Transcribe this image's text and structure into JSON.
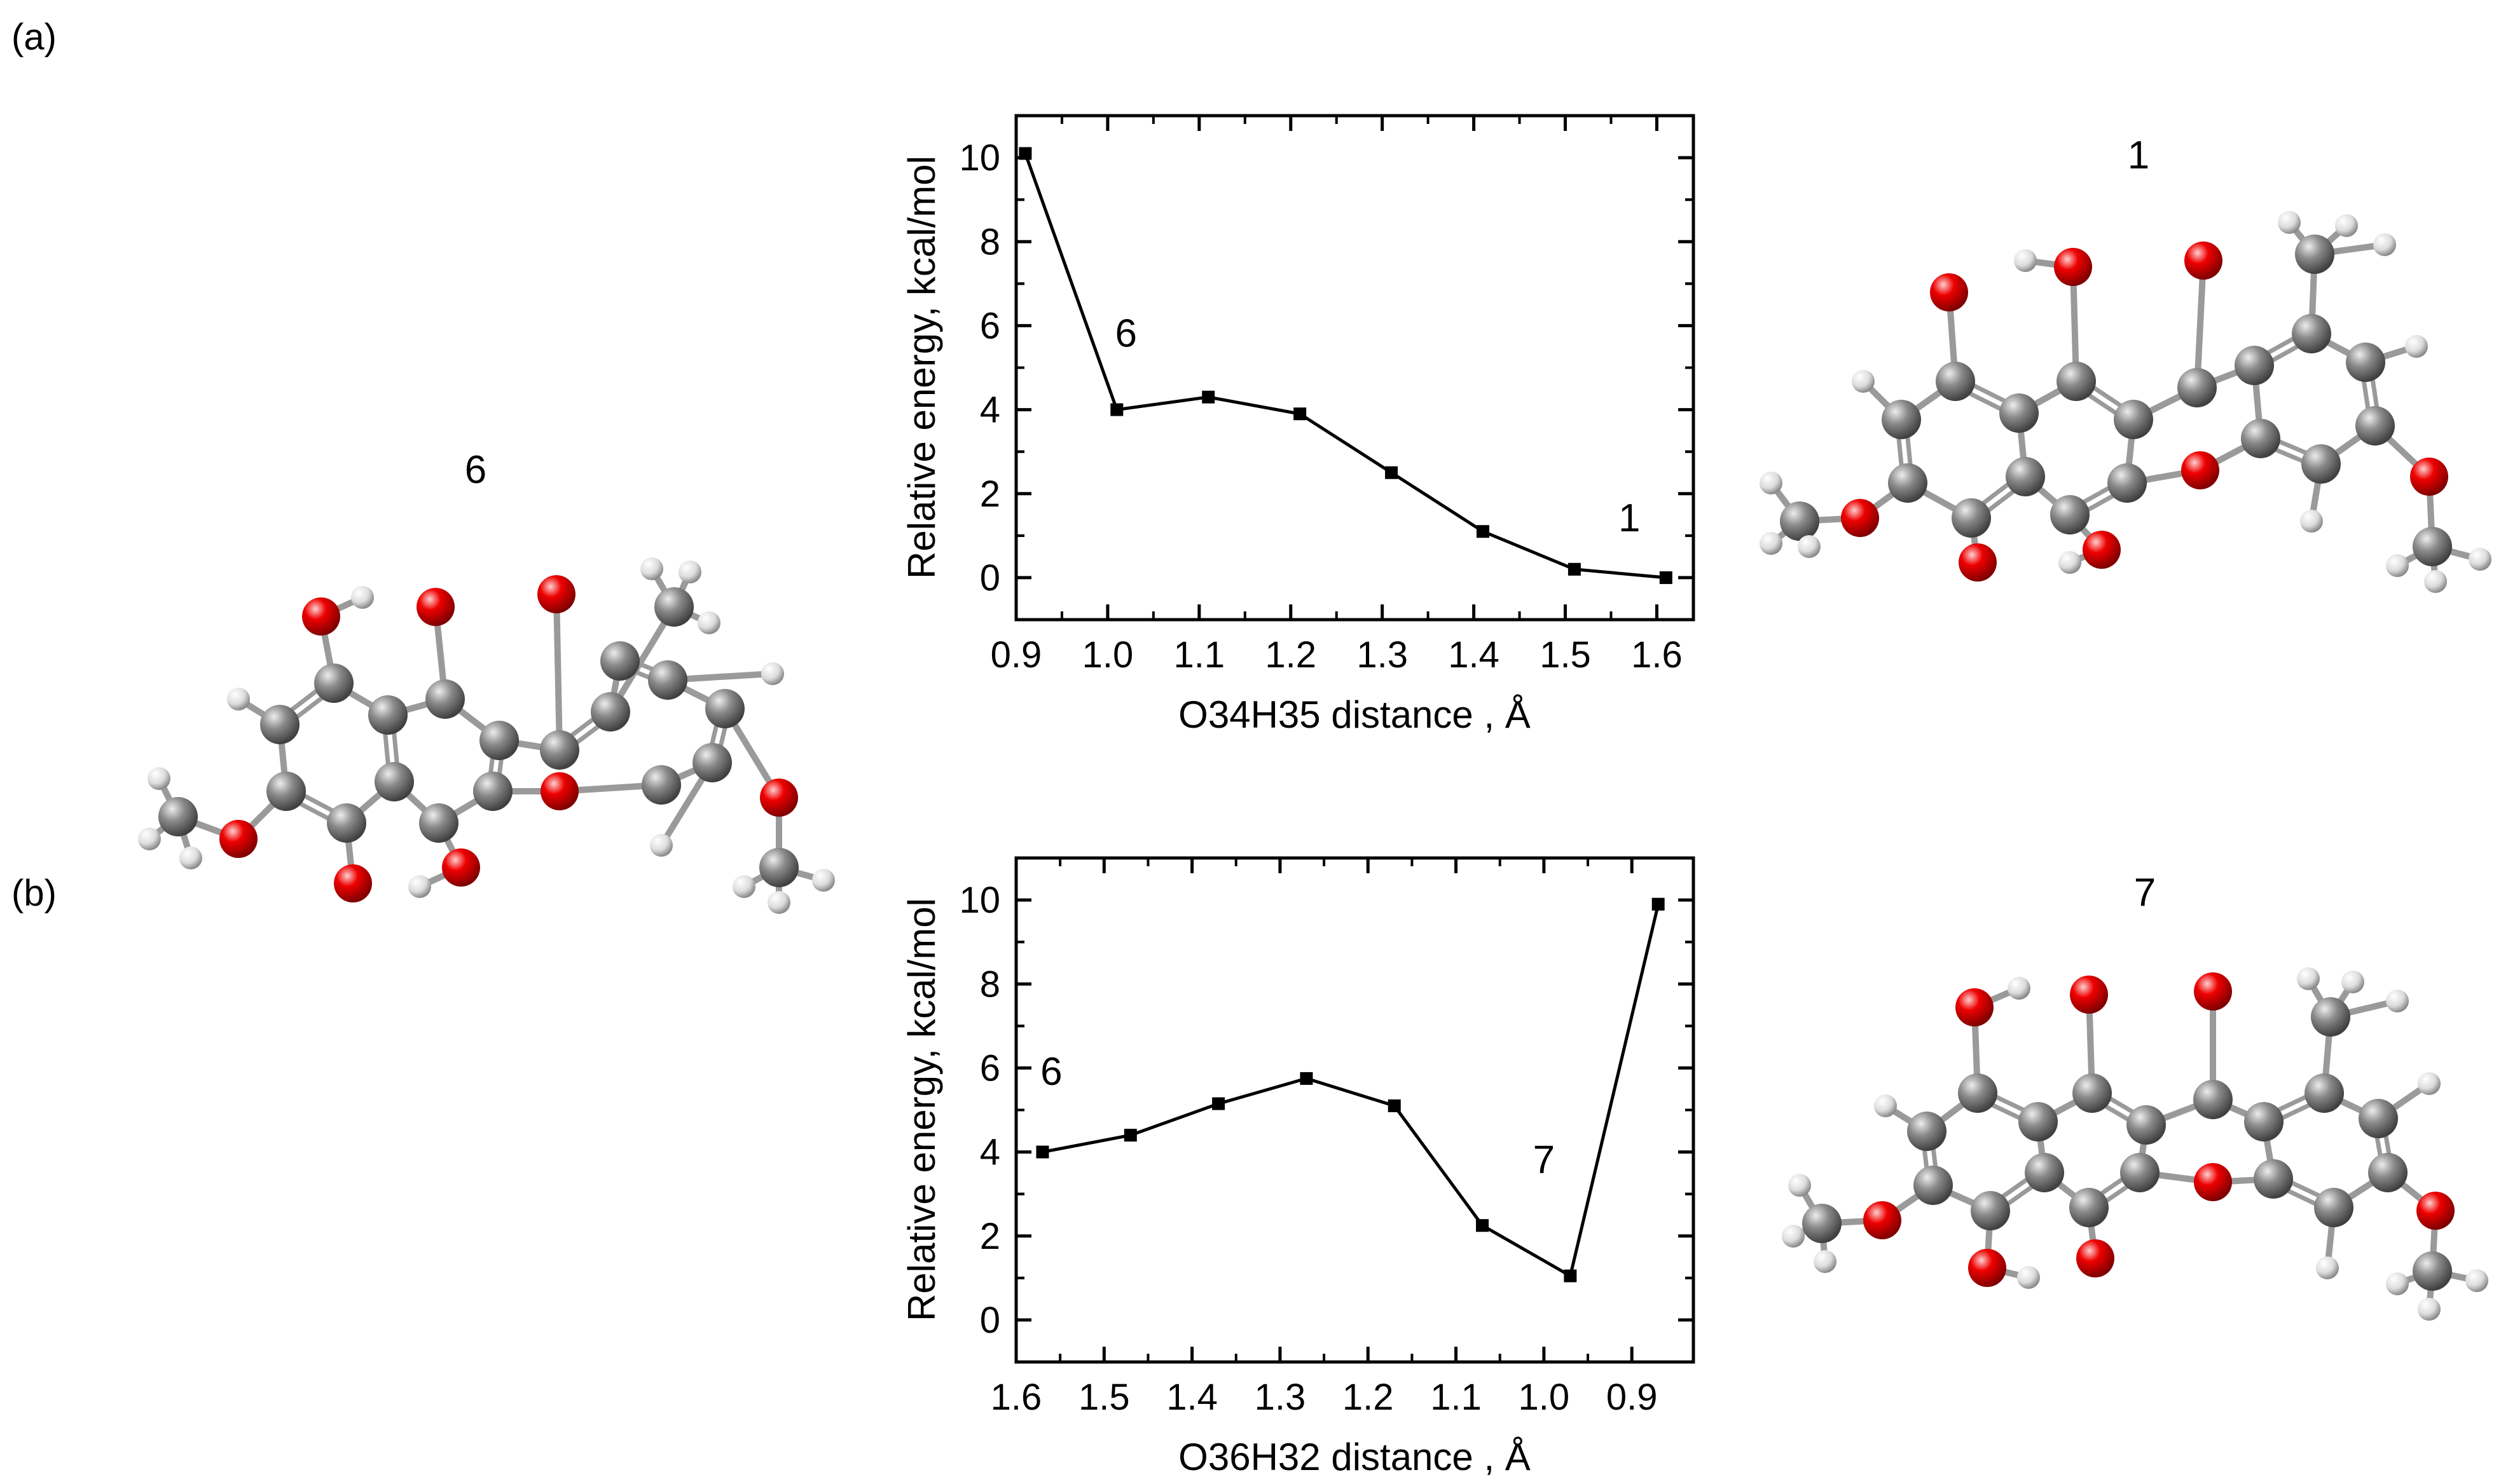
{
  "panels": [
    {
      "label": "(a)"
    },
    {
      "label": "(b)"
    }
  ],
  "molecules": [
    {
      "label": "6"
    },
    {
      "label": "1"
    },
    {
      "label": "7"
    }
  ],
  "colors": {
    "carbon": "#7d7d7d",
    "oxygen": "#e00000",
    "hydrogen": "#e8e8e8",
    "bond": "#9a9a9a",
    "line": "#000000"
  },
  "chart_data": [
    {
      "type": "line",
      "panel": "(a)",
      "title": "",
      "xlabel": "O34H35 distance , Å",
      "ylabel": "Relative energy, kcal/mol",
      "xlim": [
        0.9,
        1.64
      ],
      "ylim": [
        -1,
        11
      ],
      "x_reversed": false,
      "x_ticks": [
        "0.9",
        "1.0",
        "1.1",
        "1.2",
        "1.3",
        "1.4",
        "1.5",
        "1.6"
      ],
      "y_ticks": [
        "0",
        "2",
        "4",
        "6",
        "8",
        "10"
      ],
      "series": [
        {
          "x": [
            0.91,
            1.01,
            1.11,
            1.21,
            1.31,
            1.41,
            1.51,
            1.61
          ],
          "y": [
            10.1,
            4.0,
            4.3,
            3.9,
            2.5,
            1.1,
            0.2,
            0.0
          ]
        }
      ],
      "annotations": [
        {
          "text": "6",
          "x": 1.02,
          "y": 5.5
        },
        {
          "text": "1",
          "x": 1.57,
          "y": 1.1
        }
      ]
    },
    {
      "type": "line",
      "panel": "(b)",
      "title": "",
      "xlabel": "O36H32 distance , Å",
      "ylabel": "Relative energy, kcal/mol",
      "xlim": [
        1.6,
        0.83
      ],
      "ylim": [
        -1,
        11
      ],
      "x_reversed": true,
      "x_ticks": [
        "1.6",
        "1.5",
        "1.4",
        "1.3",
        "1.2",
        "1.1",
        "1.0",
        "0.9"
      ],
      "y_ticks": [
        "0",
        "2",
        "4",
        "6",
        "8",
        "10"
      ],
      "series": [
        {
          "x": [
            1.57,
            1.47,
            1.37,
            1.27,
            1.17,
            1.07,
            0.97,
            0.87
          ],
          "y": [
            4.0,
            4.4,
            5.15,
            5.75,
            5.1,
            2.25,
            1.05,
            9.9
          ]
        }
      ],
      "annotations": [
        {
          "text": "6",
          "x": 1.56,
          "y": 5.6
        },
        {
          "text": "7",
          "x": 1.0,
          "y": 3.5
        }
      ]
    }
  ]
}
